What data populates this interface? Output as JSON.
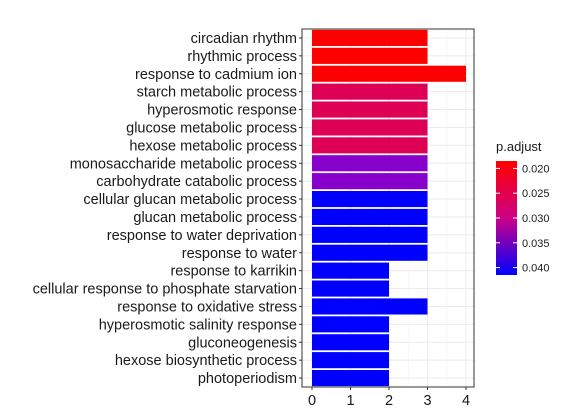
{
  "chart_data": {
    "type": "bar",
    "orientation": "horizontal",
    "categories": [
      "circadian rhythm",
      "rhythmic process",
      "response to cadmium ion",
      "starch metabolic process",
      "hyperosmotic response",
      "glucose metabolic process",
      "hexose metabolic process",
      "monosaccharide metabolic process",
      "carbohydrate catabolic process",
      "cellular glucan metabolic process",
      "glucan metabolic process",
      "response to water deprivation",
      "response to water",
      "response to karrikin",
      "cellular response to phosphate starvation",
      "response to oxidative stress",
      "hyperosmotic salinity response",
      "gluconeogenesis",
      "hexose biosynthetic process",
      "photoperiodism"
    ],
    "values": [
      3,
      3,
      4,
      3,
      3,
      3,
      3,
      3,
      3,
      3,
      3,
      3,
      3,
      2,
      2,
      3,
      2,
      2,
      2,
      2
    ],
    "colors": [
      "#ff0000",
      "#ff0000",
      "#ff0000",
      "#dd0055",
      "#dd0055",
      "#dd0055",
      "#dd0055",
      "#8800cc",
      "#8800cc",
      "#0000ff",
      "#0000ff",
      "#0000ff",
      "#0000ff",
      "#0000ff",
      "#0000ff",
      "#0000ff",
      "#0000ff",
      "#0000ff",
      "#0000ff",
      "#0000ff"
    ],
    "xlim": [
      0,
      4.25
    ],
    "xticks": [
      0,
      1,
      2,
      3,
      4
    ],
    "grid": true,
    "legend": {
      "title": "p.adjust",
      "placement": "right",
      "gradient_top": "#ff0000",
      "gradient_bottom": "#0000ff",
      "range": [
        0.0185,
        0.0415
      ],
      "ticks": [
        {
          "value": 0.02,
          "label": "0.020"
        },
        {
          "value": 0.025,
          "label": "0.025"
        },
        {
          "value": 0.03,
          "label": "0.030"
        },
        {
          "value": 0.035,
          "label": "0.035"
        },
        {
          "value": 0.04,
          "label": "0.040"
        }
      ]
    }
  }
}
